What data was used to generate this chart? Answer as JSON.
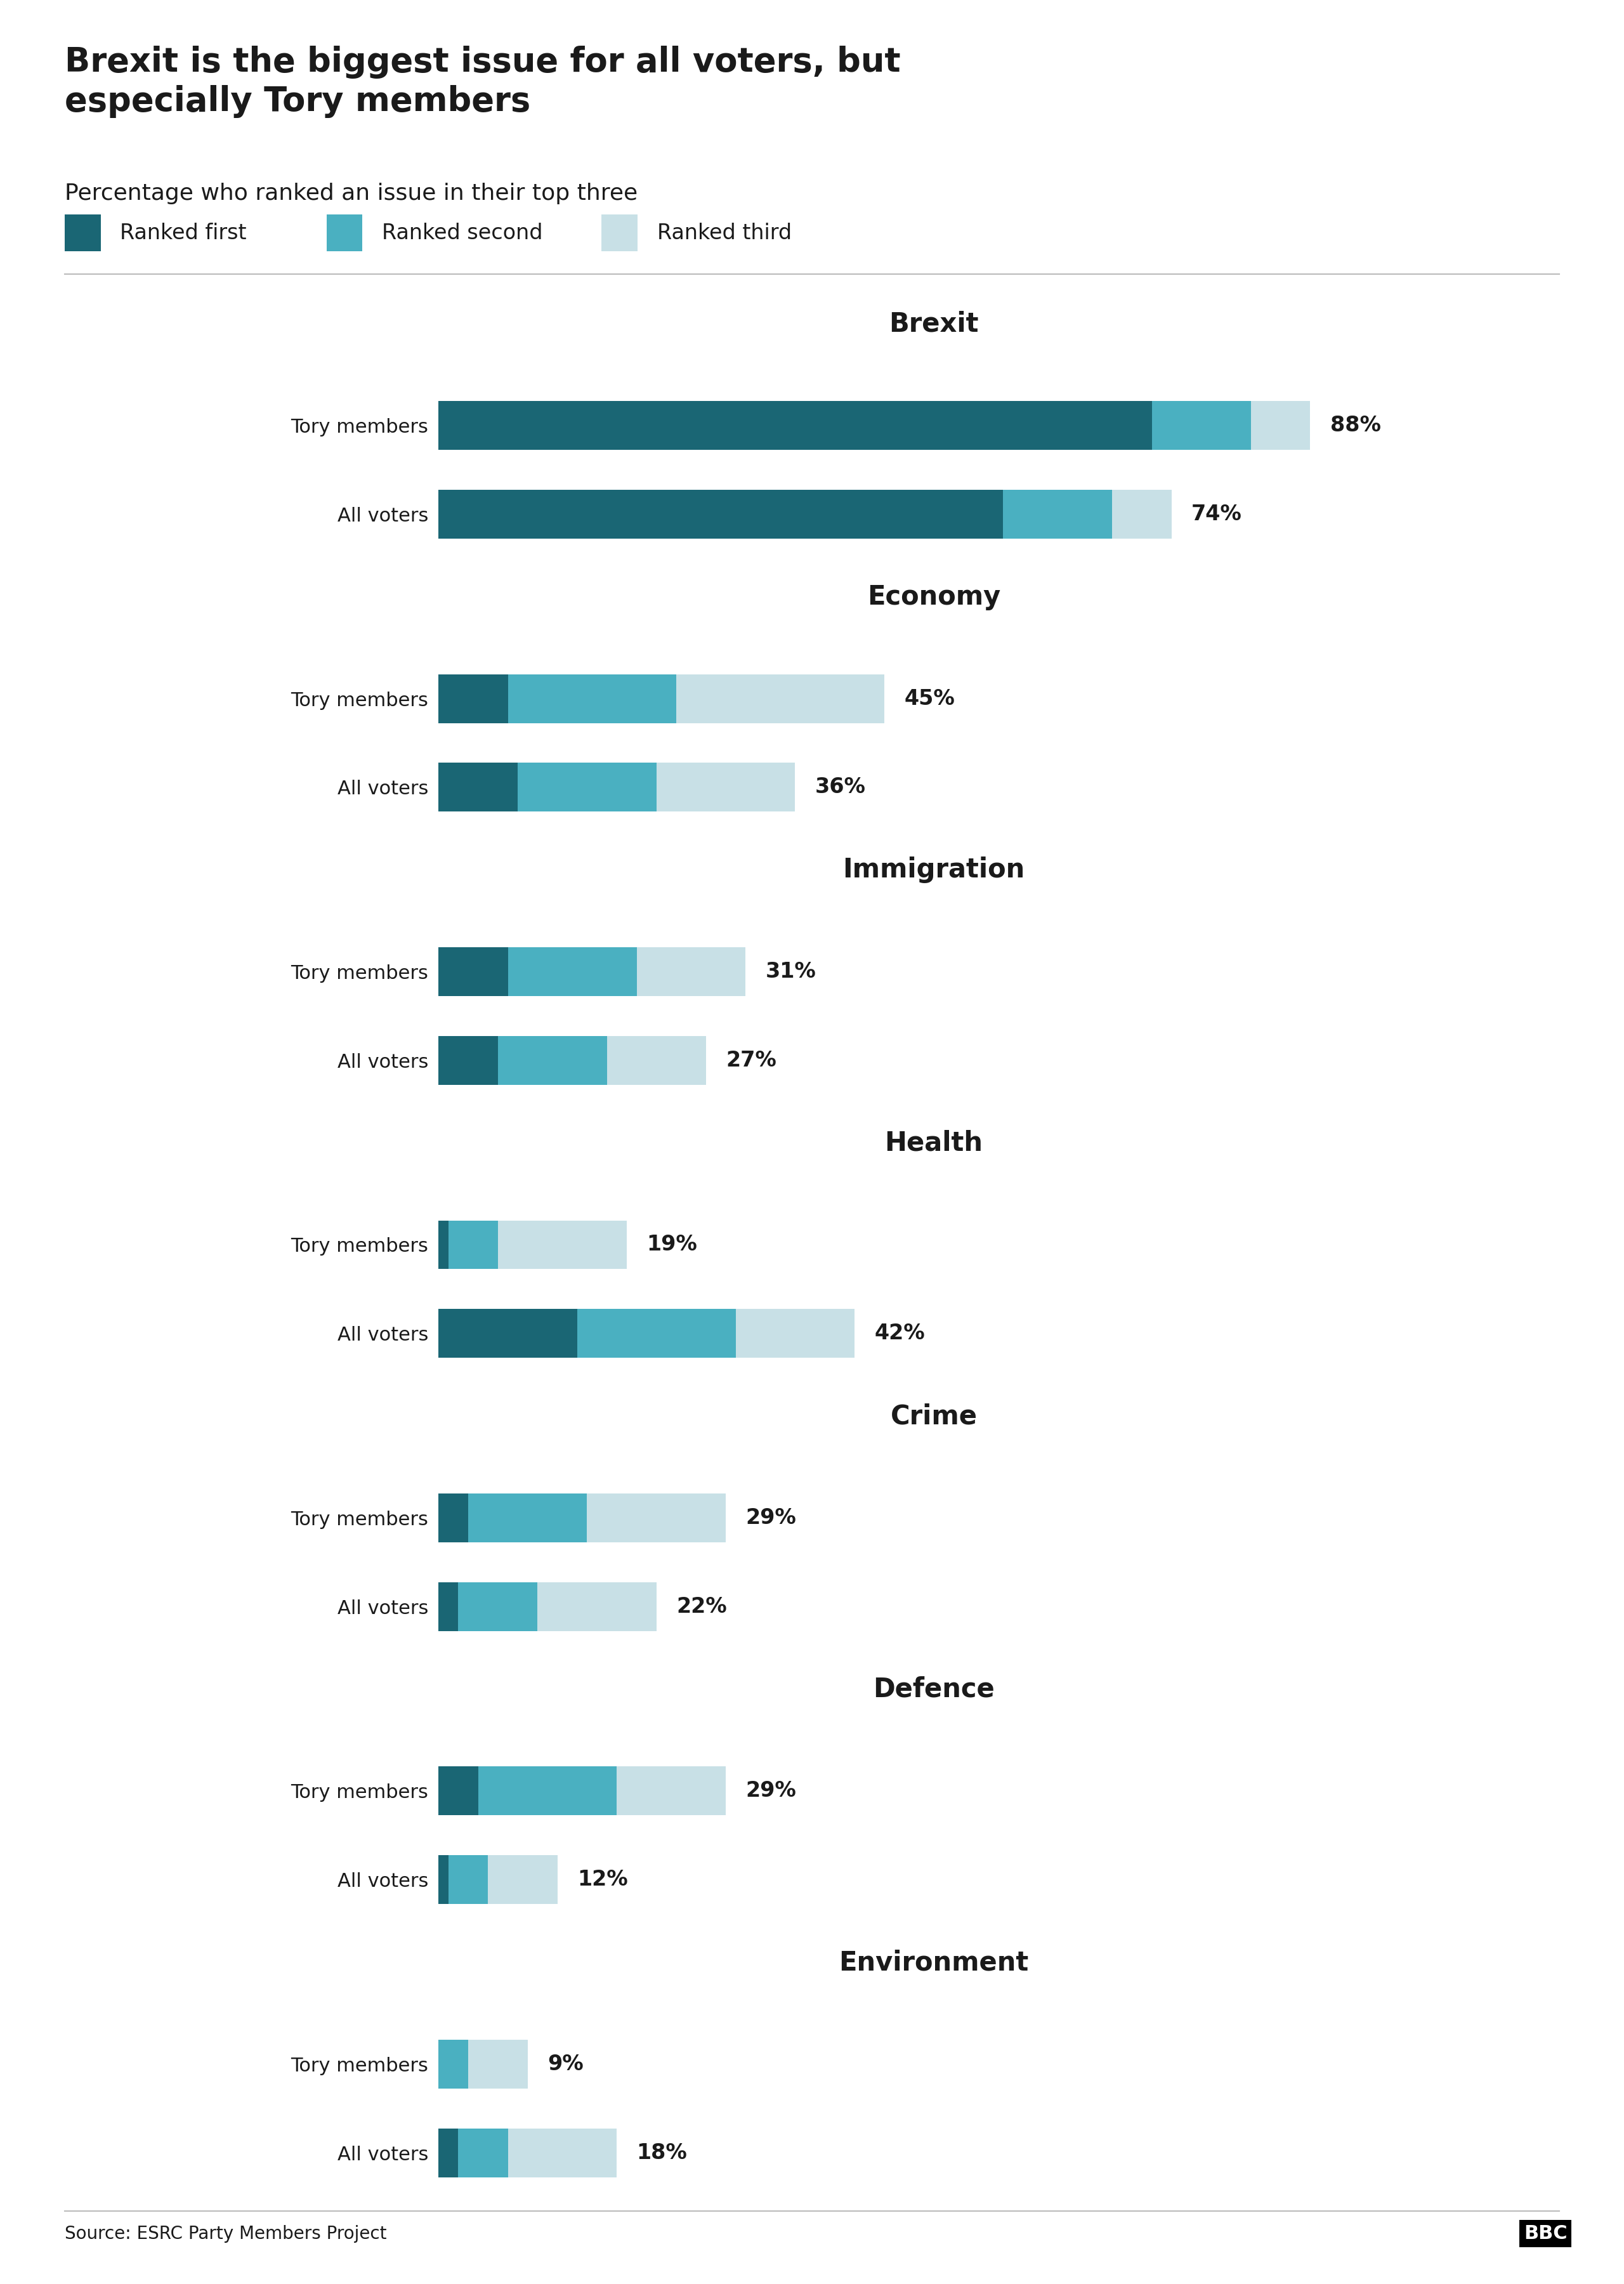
{
  "title": "Brexit is the biggest issue for all voters, but\nespecially Tory members",
  "subtitle": "Percentage who ranked an issue in their top three",
  "source": "Source: ESRC Party Members Project",
  "legend_labels": [
    "Ranked first",
    "Ranked second",
    "Ranked third"
  ],
  "colors": {
    "first": "#1a6674",
    "second": "#4ab0c1",
    "third": "#c8e0e6"
  },
  "categories": [
    "Brexit",
    "Economy",
    "Immigration",
    "Health",
    "Crime",
    "Defence",
    "Environment"
  ],
  "data": {
    "Brexit": {
      "Tory members": {
        "first": 72,
        "second": 10,
        "third": 6,
        "total": 88
      },
      "All voters": {
        "first": 57,
        "second": 11,
        "third": 6,
        "total": 74
      }
    },
    "Economy": {
      "Tory members": {
        "first": 7,
        "second": 17,
        "third": 21,
        "total": 45
      },
      "All voters": {
        "first": 8,
        "second": 14,
        "third": 14,
        "total": 36
      }
    },
    "Immigration": {
      "Tory members": {
        "first": 7,
        "second": 13,
        "third": 11,
        "total": 31
      },
      "All voters": {
        "first": 6,
        "second": 11,
        "third": 10,
        "total": 27
      }
    },
    "Health": {
      "Tory members": {
        "first": 1,
        "second": 5,
        "third": 13,
        "total": 19
      },
      "All voters": {
        "first": 14,
        "second": 16,
        "third": 12,
        "total": 42
      }
    },
    "Crime": {
      "Tory members": {
        "first": 3,
        "second": 12,
        "third": 14,
        "total": 29
      },
      "All voters": {
        "first": 2,
        "second": 8,
        "third": 12,
        "total": 22
      }
    },
    "Defence": {
      "Tory members": {
        "first": 4,
        "second": 14,
        "third": 11,
        "total": 29
      },
      "All voters": {
        "first": 1,
        "second": 4,
        "third": 7,
        "total": 12
      }
    },
    "Environment": {
      "Tory members": {
        "first": 0,
        "second": 3,
        "third": 6,
        "total": 9
      },
      "All voters": {
        "first": 2,
        "second": 5,
        "third": 11,
        "total": 18
      }
    }
  },
  "row_labels": [
    "Tory members",
    "All voters"
  ],
  "background_color": "#ffffff",
  "text_color": "#1a1a1a",
  "title_fontsize": 38,
  "subtitle_fontsize": 26,
  "category_fontsize": 30,
  "bar_label_fontsize": 24,
  "legend_fontsize": 24,
  "source_fontsize": 20,
  "row_label_fontsize": 22,
  "bbc_fontsize": 22,
  "bar_height": 0.55,
  "xlim": 100
}
